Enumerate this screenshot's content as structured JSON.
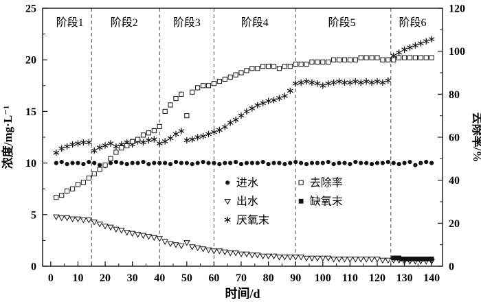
{
  "figure": {
    "background": "#ffffff",
    "ink_color": "#111111"
  },
  "chart_data": {
    "type": "scatter",
    "title": "",
    "xlabel": "时间/d",
    "ylabel_left": "浓度/mg·L⁻¹",
    "ylabel_right": "去除率/%",
    "xlim": [
      -3,
      144
    ],
    "ylim_left": [
      0,
      25
    ],
    "ylim_right": [
      0,
      120
    ],
    "x_ticks": [
      0,
      10,
      20,
      30,
      40,
      50,
      60,
      70,
      80,
      90,
      100,
      110,
      120,
      130,
      140
    ],
    "x_minor_step": 5,
    "y_ticks_left": [
      0,
      5,
      10,
      15,
      20,
      25
    ],
    "y_minor_left_step": 2.5,
    "y_ticks_right": [
      0,
      20,
      40,
      60,
      80,
      100,
      120
    ],
    "y_minor_right_step": 10,
    "grid": false,
    "stage_boundaries": [
      15,
      40,
      60,
      90,
      125
    ],
    "stage_labels": [
      {
        "label": "阶段1",
        "x": 7,
        "y": 23.6
      },
      {
        "label": "阶段2",
        "x": 27,
        "y": 23.6
      },
      {
        "label": "阶段3",
        "x": 50,
        "y": 23.6
      },
      {
        "label": "阶段4",
        "x": 75,
        "y": 23.6
      },
      {
        "label": "阶段5",
        "x": 107,
        "y": 23.6
      },
      {
        "label": "阶段6",
        "x": 133,
        "y": 23.6
      }
    ],
    "series": [
      {
        "id": "influent",
        "name": "进水",
        "marker": "circle-filled",
        "axis": "left",
        "x": [
          2,
          4,
          6,
          8,
          10,
          12,
          14,
          16,
          18,
          20,
          22,
          24,
          26,
          28,
          30,
          32,
          34,
          36,
          38,
          40,
          42,
          44,
          46,
          48,
          50,
          52,
          54,
          56,
          58,
          60,
          62,
          64,
          66,
          68,
          70,
          72,
          74,
          76,
          78,
          80,
          82,
          84,
          86,
          88,
          90,
          92,
          94,
          96,
          98,
          100,
          102,
          104,
          106,
          108,
          110,
          112,
          114,
          116,
          118,
          120,
          122,
          124,
          126,
          128,
          130,
          132,
          134,
          136,
          138,
          140
        ],
        "y": [
          10.0,
          10.1,
          9.9,
          10.0,
          10.0,
          9.9,
          10.1,
          10.0,
          9.8,
          9.7,
          10.0,
          10.1,
          10.0,
          9.9,
          10.0,
          10.0,
          10.1,
          9.9,
          10.0,
          10.0,
          10.0,
          9.9,
          10.1,
          10.0,
          10.0,
          9.9,
          10.0,
          10.1,
          10.0,
          10.0,
          9.9,
          10.0,
          10.0,
          10.1,
          9.9,
          10.0,
          10.0,
          10.0,
          10.1,
          9.9,
          10.0,
          10.0,
          9.9,
          10.0,
          10.1,
          10.0,
          9.9,
          10.0,
          10.0,
          10.0,
          10.1,
          9.9,
          10.0,
          10.0,
          9.9,
          10.1,
          10.0,
          10.0,
          9.9,
          10.0,
          10.0,
          10.1,
          10.0,
          9.9,
          10.0,
          10.1,
          9.8,
          10.0,
          10.1,
          10.0
        ]
      },
      {
        "id": "effluent",
        "name": "出水",
        "marker": "triangle-open",
        "axis": "left",
        "x": [
          2,
          4,
          6,
          8,
          10,
          12,
          14,
          16,
          18,
          20,
          22,
          24,
          26,
          28,
          30,
          32,
          34,
          36,
          38,
          40,
          42,
          44,
          46,
          48,
          50,
          52,
          54,
          56,
          58,
          60,
          62,
          64,
          66,
          68,
          70,
          72,
          74,
          76,
          78,
          80,
          82,
          84,
          86,
          88,
          90,
          92,
          94,
          96,
          98,
          100,
          102,
          104,
          106,
          108,
          110,
          112,
          114,
          116,
          118,
          120,
          122,
          124,
          126,
          128,
          130,
          132,
          134,
          136,
          138,
          140
        ],
        "y": [
          4.8,
          4.7,
          4.7,
          4.6,
          4.6,
          4.5,
          4.5,
          4.3,
          4.1,
          3.9,
          3.8,
          3.6,
          3.5,
          3.3,
          3.2,
          3.1,
          3.0,
          2.9,
          2.8,
          2.7,
          2.4,
          2.2,
          2.1,
          2.0,
          2.3,
          1.9,
          1.8,
          1.7,
          1.6,
          1.5,
          1.5,
          1.4,
          1.3,
          1.3,
          1.2,
          1.2,
          1.1,
          1.1,
          1.0,
          1.0,
          1.0,
          0.9,
          0.9,
          0.9,
          0.9,
          0.9,
          0.8,
          0.8,
          0.8,
          0.8,
          0.8,
          0.7,
          0.7,
          0.7,
          0.7,
          0.7,
          0.7,
          0.7,
          0.7,
          0.7,
          0.6,
          0.6,
          0.6,
          0.6,
          0.5,
          0.5,
          0.5,
          0.5,
          0.5,
          0.5
        ]
      },
      {
        "id": "anaerobic-end",
        "name": "厌氧末",
        "marker": "asterisk",
        "axis": "left",
        "x": [
          2,
          4,
          6,
          8,
          10,
          12,
          14,
          16,
          18,
          20,
          22,
          24,
          26,
          28,
          30,
          32,
          34,
          36,
          38,
          40,
          42,
          44,
          46,
          48,
          50,
          52,
          54,
          56,
          58,
          60,
          62,
          64,
          66,
          68,
          70,
          72,
          74,
          76,
          78,
          80,
          82,
          84,
          86,
          88,
          90,
          92,
          94,
          96,
          98,
          100,
          102,
          104,
          106,
          108,
          110,
          112,
          114,
          116,
          118,
          120,
          122,
          124,
          126,
          128,
          130,
          132,
          134,
          136,
          138,
          140
        ],
        "y": [
          11.0,
          11.4,
          11.6,
          11.8,
          11.9,
          12.0,
          12.0,
          11.2,
          11.5,
          11.7,
          11.9,
          11.6,
          11.8,
          12.0,
          11.8,
          12.1,
          12.0,
          12.2,
          12.3,
          11.9,
          12.1,
          12.4,
          12.8,
          13.1,
          12.2,
          12.3,
          12.5,
          12.6,
          12.8,
          13.0,
          13.2,
          13.5,
          13.9,
          14.2,
          14.6,
          15.0,
          15.3,
          15.6,
          15.8,
          16.0,
          16.1,
          16.3,
          16.5,
          17.0,
          17.7,
          17.8,
          17.9,
          17.8,
          17.7,
          17.5,
          17.7,
          17.8,
          17.9,
          17.8,
          17.8,
          17.9,
          17.8,
          17.9,
          17.8,
          17.9,
          17.8,
          18.0,
          20.4,
          20.7,
          21.0,
          21.2,
          21.4,
          21.6,
          21.8,
          22.0
        ]
      },
      {
        "id": "removal-rate",
        "name": "去除率",
        "marker": "square-open",
        "axis": "right",
        "x": [
          2,
          4,
          6,
          8,
          10,
          12,
          14,
          16,
          18,
          20,
          22,
          24,
          26,
          28,
          30,
          32,
          34,
          36,
          38,
          40,
          42,
          44,
          46,
          48,
          50,
          52,
          54,
          56,
          58,
          60,
          62,
          64,
          66,
          68,
          70,
          72,
          74,
          76,
          78,
          80,
          82,
          84,
          86,
          88,
          90,
          92,
          94,
          96,
          98,
          100,
          102,
          104,
          106,
          108,
          110,
          112,
          114,
          116,
          118,
          120,
          122,
          124,
          126,
          128,
          130,
          132,
          134,
          136,
          138,
          140
        ],
        "y": [
          32,
          33,
          35,
          36,
          38,
          39,
          41,
          43,
          45,
          47,
          50,
          53,
          55,
          56,
          58,
          59,
          61,
          62,
          63,
          65,
          72,
          75,
          78,
          80,
          70,
          81,
          83,
          84,
          84,
          85,
          86,
          87,
          88,
          89,
          90,
          91,
          92,
          92,
          93,
          93,
          93,
          92,
          93,
          93,
          94,
          94,
          94,
          95,
          95,
          95,
          95,
          96,
          96,
          96,
          96,
          96,
          97,
          97,
          97,
          97,
          96,
          96,
          96,
          97,
          97,
          97,
          97,
          97,
          97,
          97
        ]
      },
      {
        "id": "anoxic-end",
        "name": "缺氧末",
        "marker": "square-filled",
        "axis": "left",
        "x": [
          126,
          127,
          128,
          129,
          130,
          131,
          132,
          133,
          134,
          135,
          136,
          137,
          138,
          139,
          140
        ],
        "y": [
          0.8,
          0.8,
          0.8,
          0.7,
          0.7,
          0.7,
          0.7,
          0.7,
          0.7,
          0.7,
          0.7,
          0.7,
          0.7,
          0.7,
          0.7
        ]
      }
    ],
    "legend": {
      "position": "center-bottom-inside",
      "col_x": [
        65,
        92
      ],
      "label_dx": 3.2,
      "row_y": [
        8.1,
        6.3,
        4.5
      ],
      "entries": [
        {
          "id": "influent",
          "label": "进水",
          "marker": "circle-filled",
          "col": 0,
          "row": 0
        },
        {
          "id": "effluent",
          "label": "出水",
          "marker": "triangle-open",
          "col": 0,
          "row": 1
        },
        {
          "id": "anaerobic-end",
          "label": "厌氧末",
          "marker": "asterisk",
          "col": 0,
          "row": 2
        },
        {
          "id": "removal-rate",
          "label": "去除率",
          "marker": "square-open",
          "col": 1,
          "row": 0
        },
        {
          "id": "anoxic-end",
          "label": "缺氧末",
          "marker": "square-filled",
          "col": 1,
          "row": 1
        }
      ]
    }
  }
}
